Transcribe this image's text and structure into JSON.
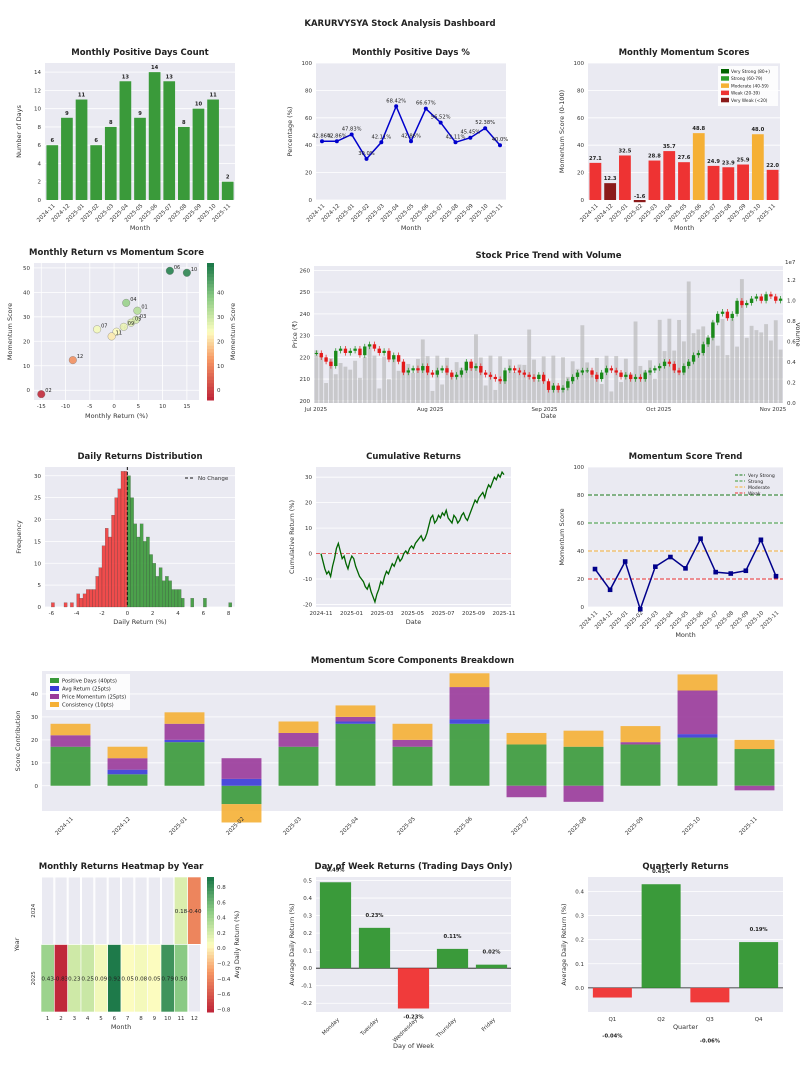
{
  "page": {
    "title": "KARURVYSYA Stock Analysis Dashboard"
  },
  "chart_data": [
    {
      "id": "positive_days_count",
      "type": "bar",
      "title": "Monthly Positive Days Count",
      "xlabel": "Month",
      "ylabel": "Number of Days",
      "categories": [
        "2024-11",
        "2024-12",
        "2025-01",
        "2025-02",
        "2025-03",
        "2025-04",
        "2025-05",
        "2025-06",
        "2025-07",
        "2025-08",
        "2025-09",
        "2025-10",
        "2025-11"
      ],
      "values": [
        6,
        9,
        11,
        6,
        8,
        13,
        9,
        14,
        13,
        8,
        10,
        11,
        2
      ],
      "ylim": [
        0,
        15
      ],
      "yticks": [
        0,
        2,
        4,
        6,
        8,
        10,
        12,
        14
      ],
      "color": "#3a9a3a"
    },
    {
      "id": "positive_days_pct",
      "type": "line",
      "title": "Monthly Positive Days %",
      "xlabel": "Month",
      "ylabel": "Percentage (%)",
      "categories": [
        "2024-11",
        "2024-12",
        "2025-01",
        "2025-02",
        "2025-03",
        "2025-04",
        "2025-05",
        "2025-06",
        "2025-07",
        "2025-08",
        "2025-09",
        "2025-10",
        "2025-11"
      ],
      "values": [
        42.86,
        42.86,
        47.83,
        30.0,
        42.11,
        68.42,
        42.86,
        66.67,
        56.52,
        42.11,
        45.45,
        52.38,
        40.0
      ],
      "data_labels": [
        "42.86%",
        "42.86%",
        "47.83%",
        "30.0%",
        "42.11%",
        "68.42%",
        "42.86%",
        "66.67%",
        "56.52%",
        "42.11%",
        "45.45%",
        "52.38%",
        "40.0%"
      ],
      "ylim": [
        0,
        100
      ],
      "yticks": [
        0,
        20,
        40,
        60,
        80,
        100
      ],
      "color": "#0000cc"
    },
    {
      "id": "momentum_scores",
      "type": "bar",
      "title": "Monthly Momentum Scores",
      "xlabel": "Month",
      "ylabel": "Momentum Score (0-100)",
      "categories": [
        "2024-11",
        "2024-12",
        "2025-01",
        "2025-02",
        "2025-03",
        "2025-04",
        "2025-05",
        "2025-06",
        "2025-07",
        "2025-08",
        "2025-09",
        "2025-10",
        "2025-11"
      ],
      "values": [
        27.1,
        12.3,
        32.5,
        -1.6,
        28.8,
        35.7,
        27.6,
        48.8,
        24.9,
        23.9,
        25.9,
        48.0,
        22.0
      ],
      "data_labels": [
        "27.1",
        "12.3",
        "32.5",
        "-1.6",
        "28.8",
        "35.7",
        "27.6",
        "48.8",
        "24.9",
        "23.9",
        "25.9",
        "48.0",
        "22.0"
      ],
      "colors": [
        "#ee3333",
        "#8b1a1a",
        "#ee3333",
        "#8b1a1a",
        "#ee3333",
        "#ee3333",
        "#ee3333",
        "#f5b035",
        "#ee3333",
        "#ee3333",
        "#ee3333",
        "#f5b035",
        "#ee3333"
      ],
      "ylim": [
        0,
        100
      ],
      "yticks": [
        0,
        20,
        40,
        60,
        80,
        100
      ],
      "legend": [
        {
          "label": "Very Strong (80+)",
          "color": "#006400"
        },
        {
          "label": "Strong (60-79)",
          "color": "#2ca02c"
        },
        {
          "label": "Moderate (40-59)",
          "color": "#f5b035"
        },
        {
          "label": "Weak (20-39)",
          "color": "#ee3333"
        },
        {
          "label": "Very Weak (<20)",
          "color": "#8b1a1a"
        }
      ]
    },
    {
      "id": "return_vs_momentum",
      "type": "scatter",
      "title": "Monthly Return vs Momentum Score",
      "xlabel": "Monthly Return (%)",
      "ylabel": "Momentum Score",
      "colorbar_label": "Momentum Score",
      "points": [
        {
          "label": "01",
          "x": 4.8,
          "y": 32.5
        },
        {
          "label": "02",
          "x": -15.0,
          "y": -1.6
        },
        {
          "label": "03",
          "x": 4.5,
          "y": 28.8
        },
        {
          "label": "04",
          "x": 2.5,
          "y": 35.7
        },
        {
          "label": "05",
          "x": 3.5,
          "y": 27.6
        },
        {
          "label": "06",
          "x": 11.5,
          "y": 48.8
        },
        {
          "label": "07",
          "x": -3.5,
          "y": 24.9
        },
        {
          "label": "08",
          "x": 0.5,
          "y": 23.9
        },
        {
          "label": "09",
          "x": 2.0,
          "y": 25.9
        },
        {
          "label": "10",
          "x": 15.0,
          "y": 48.0
        },
        {
          "label": "11",
          "x": -0.5,
          "y": 22.0
        },
        {
          "label": "12",
          "x": -8.5,
          "y": 12.3
        }
      ],
      "xlim": [
        -16.5,
        17.5
      ],
      "ylim": [
        -4,
        52
      ],
      "xticks": [
        -15,
        -10,
        -5,
        0,
        5,
        10,
        15
      ],
      "yticks": [
        0,
        10,
        20,
        30,
        40,
        50
      ],
      "cbar_ticks": [
        0,
        10,
        20,
        30,
        40
      ]
    },
    {
      "id": "price_trend",
      "type": "candlestick",
      "title": "Stock Price Trend with Volume",
      "xlabel": "Date",
      "ylabel": "Price (₹)",
      "y2label": "Volume",
      "y2_multiplier": "1e7",
      "xticks": [
        "Jul 2025",
        "Aug 2025",
        "Sep 2025",
        "Oct 2025",
        "Nov 2025"
      ],
      "ylim": [
        199,
        262
      ],
      "yticks": [
        200,
        210,
        220,
        230,
        240,
        250,
        260
      ],
      "y2ticks": [
        "0.0",
        "0.2",
        "0.4",
        "0.6",
        "0.8",
        "1.0",
        "1.2"
      ],
      "close": [
        222,
        220,
        218,
        216,
        223,
        224,
        222,
        223,
        224,
        221,
        225,
        226,
        224,
        222,
        223,
        219,
        221,
        218,
        213,
        214,
        215,
        214,
        216,
        213,
        212,
        214,
        215,
        213,
        211,
        212,
        214,
        218,
        215,
        216,
        213,
        212,
        211,
        210,
        209,
        214,
        215,
        214,
        213,
        212,
        211,
        210,
        212,
        209,
        205,
        207,
        205,
        206,
        209,
        211,
        213,
        214,
        214,
        212,
        210,
        213,
        215,
        214,
        213,
        211,
        212,
        210,
        211,
        210,
        213,
        214,
        215,
        216,
        218,
        217,
        214,
        213,
        216,
        218,
        221,
        222,
        226,
        229,
        236,
        240,
        241,
        238,
        240,
        246,
        244,
        245,
        247,
        248,
        246,
        249,
        248,
        246,
        247
      ]
    },
    {
      "id": "daily_returns_distribution",
      "type": "histogram",
      "title": "Daily Returns Distribution",
      "xlabel": "Daily Return (%)",
      "ylabel": "Frequency",
      "legend": [
        {
          "label": "No Change"
        }
      ],
      "bins": [
        {
          "x": -6.0,
          "count": 1
        },
        {
          "x": -5.0,
          "count": 1
        },
        {
          "x": -4.5,
          "count": 1
        },
        {
          "x": -4.0,
          "count": 3
        },
        {
          "x": -3.75,
          "count": 2
        },
        {
          "x": -3.5,
          "count": 3
        },
        {
          "x": -3.25,
          "count": 4
        },
        {
          "x": -3.0,
          "count": 4
        },
        {
          "x": -2.75,
          "count": 4
        },
        {
          "x": -2.5,
          "count": 7
        },
        {
          "x": -2.25,
          "count": 9
        },
        {
          "x": -2.0,
          "count": 14
        },
        {
          "x": -1.75,
          "count": 18
        },
        {
          "x": -1.5,
          "count": 16
        },
        {
          "x": -1.25,
          "count": 21
        },
        {
          "x": -1.0,
          "count": 25
        },
        {
          "x": -0.75,
          "count": 27
        },
        {
          "x": -0.5,
          "count": 31
        },
        {
          "x": -0.25,
          "count": 31
        },
        {
          "x": 0.0,
          "count": 30
        },
        {
          "x": 0.25,
          "count": 25
        },
        {
          "x": 0.5,
          "count": 19
        },
        {
          "x": 0.75,
          "count": 16
        },
        {
          "x": 1.0,
          "count": 19
        },
        {
          "x": 1.25,
          "count": 15
        },
        {
          "x": 1.5,
          "count": 16
        },
        {
          "x": 1.75,
          "count": 12
        },
        {
          "x": 2.0,
          "count": 10
        },
        {
          "x": 2.25,
          "count": 7
        },
        {
          "x": 2.5,
          "count": 9
        },
        {
          "x": 2.75,
          "count": 6
        },
        {
          "x": 3.0,
          "count": 7
        },
        {
          "x": 3.25,
          "count": 6
        },
        {
          "x": 3.5,
          "count": 4
        },
        {
          "x": 3.75,
          "count": 4
        },
        {
          "x": 4.0,
          "count": 4
        },
        {
          "x": 4.25,
          "count": 2
        },
        {
          "x": 5.0,
          "count": 2
        },
        {
          "x": 6.0,
          "count": 2
        },
        {
          "x": 8.0,
          "count": 1
        }
      ],
      "bin_width": 0.25,
      "xlim": [
        -6.5,
        8.5
      ],
      "ylim": [
        0,
        32
      ],
      "xticks": [
        -6,
        -4,
        -2,
        0,
        2,
        4,
        6,
        8
      ],
      "yticks": [
        0,
        5,
        10,
        15,
        20,
        25,
        30
      ]
    },
    {
      "id": "cumulative_returns",
      "type": "line",
      "title": "Cumulative Returns",
      "xlabel": "Date",
      "ylabel": "Cumulative Return (%)",
      "xticks": [
        "2024-11",
        "2025-01",
        "2025-03",
        "2025-05",
        "2025-07",
        "2025-09",
        "2025-11"
      ],
      "ylim": [
        -21,
        34
      ],
      "yticks": [
        -20,
        -10,
        0,
        10,
        20,
        30
      ],
      "values": [
        0,
        -3,
        -6,
        -8,
        -7,
        -9,
        -5,
        -2,
        2,
        4,
        1,
        -2,
        -1,
        -4,
        -6,
        -3,
        -1,
        -2,
        -5,
        -7,
        -9,
        -10,
        -11,
        -13,
        -14,
        -12,
        -15,
        -17,
        -19,
        -16,
        -14,
        -11,
        -12,
        -9,
        -7,
        -8,
        -6,
        -4,
        -5,
        -3,
        -1,
        -3,
        -2,
        0,
        1,
        0,
        2,
        3,
        2,
        4,
        5,
        6,
        7,
        5,
        6,
        8,
        11,
        14,
        15,
        12,
        13,
        15,
        14,
        16,
        15,
        17,
        14,
        13,
        12,
        15,
        14,
        12,
        13,
        15,
        16,
        14,
        13,
        15,
        17,
        19,
        21,
        20,
        22,
        23,
        24,
        22,
        25,
        27,
        26,
        28,
        30,
        29,
        31,
        30,
        32,
        31
      ]
    },
    {
      "id": "momentum_trend",
      "type": "line",
      "title": "Momentum Score Trend",
      "xlabel": "Month",
      "ylabel": "Momentum Score",
      "categories": [
        "2024-11",
        "2024-12",
        "2025-01",
        "2025-02",
        "2025-03",
        "2025-04",
        "2025-05",
        "2025-06",
        "2025-07",
        "2025-08",
        "2025-09",
        "2025-10",
        "2025-11"
      ],
      "values": [
        27.1,
        12.3,
        32.5,
        -1.6,
        28.8,
        35.7,
        27.6,
        48.8,
        24.9,
        23.9,
        25.9,
        48.0,
        22.0
      ],
      "ylim": [
        0,
        100
      ],
      "yticks": [
        0,
        20,
        40,
        60,
        80,
        100
      ],
      "thresholds": [
        {
          "label": "Very Strong",
          "value": 80,
          "color": "#1a7a1a"
        },
        {
          "label": "Strong",
          "value": 60,
          "color": "#3a9a3a"
        },
        {
          "label": "Moderate",
          "value": 40,
          "color": "#f5b035"
        },
        {
          "label": "Weak",
          "value": 20,
          "color": "#ee3333"
        }
      ],
      "color": "#00008b"
    },
    {
      "id": "momentum_components",
      "type": "stacked_bar",
      "title": "Momentum Score Components Breakdown",
      "ylabel": "Score Contribution",
      "categories": [
        "2024-11",
        "2024-12",
        "2025-01",
        "2025-02",
        "2025-03",
        "2025-04",
        "2025-05",
        "2025-06",
        "2025-07",
        "2025-08",
        "2025-09",
        "2025-10",
        "2025-11"
      ],
      "series": [
        {
          "name": "Positive Days (40pts)",
          "color": "#3a9a3a",
          "values": [
            17,
            5,
            19,
            -8,
            17,
            27,
            17,
            27,
            18,
            17,
            18,
            21,
            16
          ]
        },
        {
          "name": "Avg Return (25pts)",
          "color": "#3a3ad8",
          "values": [
            0,
            2,
            1,
            3,
            0,
            1,
            0,
            2,
            0,
            0,
            0,
            1.5,
            0
          ]
        },
        {
          "name": "Price Momentum (25pts)",
          "color": "#9a3a9a",
          "values": [
            5,
            5,
            7,
            9,
            6,
            2,
            3,
            14,
            -5,
            -7,
            1,
            19,
            -2
          ]
        },
        {
          "name": "Consistency (10pts)",
          "color": "#f5b035",
          "values": [
            5,
            5,
            5,
            -8,
            5,
            5,
            7,
            6,
            5,
            7,
            7,
            7,
            4
          ]
        }
      ],
      "ylim": [
        -11,
        50
      ],
      "yticks": [
        0,
        10,
        20,
        30,
        40
      ]
    },
    {
      "id": "returns_heatmap",
      "type": "heatmap",
      "title": "Monthly Returns Heatmap by Year",
      "xlabel": "Month",
      "ylabel": "Year",
      "colorbar_label": "Avg Daily Return (%)",
      "x": [
        "1",
        "2",
        "3",
        "4",
        "5",
        "6",
        "7",
        "8",
        "9",
        "10",
        "11",
        "12"
      ],
      "y": [
        "2024",
        "2025"
      ],
      "values": [
        [
          null,
          null,
          null,
          null,
          null,
          null,
          null,
          null,
          null,
          null,
          0.18,
          -0.4
        ],
        [
          0.43,
          -0.83,
          0.23,
          0.25,
          0.09,
          0.92,
          0.05,
          0.08,
          0.05,
          0.79,
          0.5,
          null
        ]
      ],
      "labels": [
        [
          "",
          "",
          "",
          "",
          "",
          "",
          "",
          "",
          "",
          "",
          "0.18",
          "-0.40"
        ],
        [
          "0.43",
          "-0.83",
          "0.23",
          "0.25",
          "0.09",
          "0.92",
          "0.05",
          "0.08",
          "0.05",
          "0.79",
          "0.50",
          ""
        ]
      ],
      "clim": [
        -0.83,
        0.92
      ],
      "cbar_ticks": [
        "0.8",
        "0.6",
        "0.4",
        "0.2",
        "0.0",
        "−0.2",
        "−0.4",
        "−0.6",
        "−0.8"
      ]
    },
    {
      "id": "day_of_week_returns",
      "type": "bar",
      "title": "Day of Week Returns (Trading Days Only)",
      "xlabel": "Day of Week",
      "ylabel": "Average Daily Return (%)",
      "categories": [
        "Monday",
        "Tuesday",
        "Wednesday",
        "Thursday",
        "Friday"
      ],
      "values": [
        0.49,
        0.23,
        -0.23,
        0.11,
        0.02
      ],
      "data_labels": [
        "0.49%",
        "0.23%",
        "-0.23%",
        "0.11%",
        "0.02%"
      ],
      "ylim": [
        -0.25,
        0.52
      ],
      "yticks": [
        -0.2,
        -0.1,
        0.0,
        0.1,
        0.2,
        0.3,
        0.4,
        0.5
      ]
    },
    {
      "id": "quarterly_returns",
      "type": "bar",
      "title": "Quarterly Returns",
      "xlabel": "Quarter",
      "ylabel": "Average Daily Return (%)",
      "categories": [
        "Q1",
        "Q2",
        "Q3",
        "Q4"
      ],
      "values": [
        -0.04,
        0.43,
        -0.06,
        0.19
      ],
      "data_labels": [
        "-0.04%",
        "0.43%",
        "-0.06%",
        "0.19%"
      ],
      "ylim": [
        -0.1,
        0.46
      ],
      "yticks": [
        0.0,
        0.1,
        0.2,
        0.3,
        0.4
      ]
    }
  ]
}
